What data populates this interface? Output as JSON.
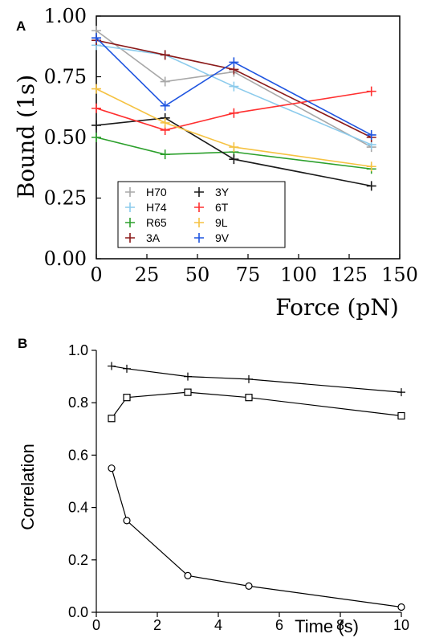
{
  "chart_data": [
    {
      "panel": "A",
      "type": "line",
      "xlabel": "Force (pN)",
      "ylabel": "Bound (1s)",
      "xlim": [
        0,
        150
      ],
      "ylim": [
        0.0,
        1.0
      ],
      "xticks": [
        "0",
        "25",
        "50",
        "75",
        "100",
        "125",
        "150"
      ],
      "yticks": [
        "0.00",
        "0.25",
        "0.50",
        "0.75",
        "1.00"
      ],
      "x": [
        0,
        34,
        68,
        136
      ],
      "legend_position": "bottom-left",
      "series": [
        {
          "name": "H70",
          "color": "#a8a8a8",
          "values": [
            0.94,
            0.73,
            0.77,
            0.46
          ]
        },
        {
          "name": "H74",
          "color": "#8ccbec",
          "values": [
            0.88,
            0.84,
            0.71,
            0.47
          ]
        },
        {
          "name": "R65",
          "color": "#2ca02c",
          "values": [
            0.5,
            0.43,
            0.44,
            0.37
          ]
        },
        {
          "name": "3A",
          "color": "#8b1a1a",
          "values": [
            0.9,
            0.84,
            0.78,
            0.5
          ]
        },
        {
          "name": "3Y",
          "color": "#1a1a1a",
          "values": [
            0.55,
            0.58,
            0.41,
            0.3
          ]
        },
        {
          "name": "6T",
          "color": "#ff3030",
          "values": [
            0.62,
            0.53,
            0.6,
            0.69
          ]
        },
        {
          "name": "9L",
          "color": "#f5c242",
          "values": [
            0.7,
            0.56,
            0.46,
            0.38
          ]
        },
        {
          "name": "9V",
          "color": "#1f55e0",
          "values": [
            0.91,
            0.63,
            0.81,
            0.51
          ]
        }
      ]
    },
    {
      "panel": "B",
      "type": "line",
      "xlabel": "Time (s)",
      "ylabel": "Correlation",
      "xlim": [
        0,
        10
      ],
      "ylim": [
        0.0,
        1.0
      ],
      "xticks": [
        "0",
        "2",
        "4",
        "6",
        "8",
        "10"
      ],
      "yticks": [
        "0.0",
        "0.2",
        "0.4",
        "0.6",
        "0.8",
        "1.0"
      ],
      "x": [
        0.5,
        1,
        3,
        5,
        10
      ],
      "series": [
        {
          "marker": "plus",
          "values": [
            0.94,
            0.93,
            0.9,
            0.89,
            0.84
          ]
        },
        {
          "marker": "square",
          "values": [
            0.74,
            0.82,
            0.84,
            0.82,
            0.75
          ]
        },
        {
          "marker": "circle",
          "values": [
            0.55,
            0.35,
            0.14,
            0.1,
            0.02
          ]
        }
      ]
    }
  ]
}
